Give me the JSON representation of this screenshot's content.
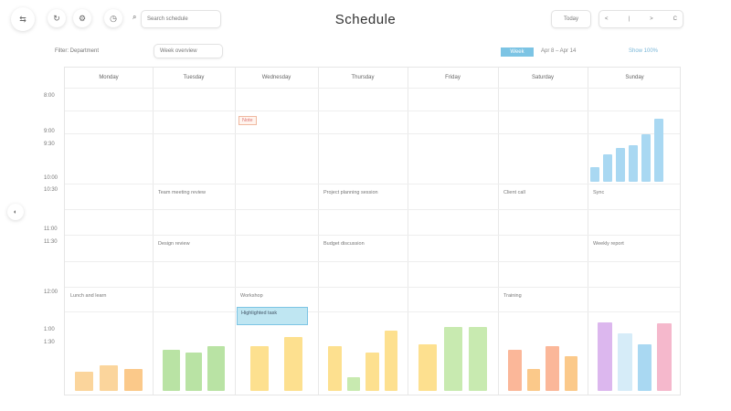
{
  "header": {
    "title": "Schedule",
    "search_placeholder": "Search schedule",
    "today_label": "Today",
    "nav": [
      "<",
      "|",
      ">",
      "C"
    ]
  },
  "toolbar": {
    "filter_label": "Filter: Department",
    "view_label": "Week overview",
    "active_chip": "Week",
    "range_label": "Apr 8 – Apr 14",
    "zoom_label": "Show 100%"
  },
  "days": [
    "Monday",
    "Tuesday",
    "Wednesday",
    "Thursday",
    "Friday",
    "Saturday",
    "Sunday"
  ],
  "times": [
    "8:00",
    "9:00",
    "9:30",
    "10:00",
    "10:30",
    "11:00",
    "11:30",
    "12:00",
    "1:00",
    "1:30"
  ],
  "events": [
    {
      "day": 1,
      "row": "10:00",
      "text": "Team meeting review"
    },
    {
      "day": 3,
      "row": "10:00",
      "text": "Project planning session"
    },
    {
      "day": 5,
      "row": "10:00",
      "text": "Client call"
    },
    {
      "day": 6,
      "row": "10:00",
      "text": "Sync"
    },
    {
      "day": 1,
      "row": "11:00",
      "text": "Design review"
    },
    {
      "day": 3,
      "row": "11:00",
      "text": "Budget discussion"
    },
    {
      "day": 6,
      "row": "11:00",
      "text": "Weekly report"
    },
    {
      "day": 0,
      "row": "12:00",
      "text": "Lunch and learn"
    },
    {
      "day": 2,
      "row": "12:00",
      "text": "Workshop"
    },
    {
      "day": 5,
      "row": "12:00",
      "text": "Training"
    }
  ],
  "tag_label": "Note",
  "highlight_label": "Highlighted task",
  "accent": "#7cc4e4",
  "bar_levels": [
    [
      {
        "v": 30,
        "c": "#fbd59c"
      },
      {
        "v": 40,
        "c": "#fbd59c"
      },
      {
        "v": 35,
        "c": "#fbc98a"
      }
    ],
    [
      {
        "v": 65,
        "c": "#b9e3a4"
      },
      {
        "v": 60,
        "c": "#b9e3a4"
      },
      {
        "v": 70,
        "c": "#b9e3a4"
      }
    ],
    [
      {
        "v": 70,
        "c": "#fde08f"
      },
      {
        "v": 85,
        "c": "#fde08f"
      }
    ],
    [
      {
        "v": 70,
        "c": "#fde08f"
      },
      {
        "v": 22,
        "c": "#c8eab0"
      },
      {
        "v": 60,
        "c": "#fde08f"
      },
      {
        "v": 95,
        "c": "#fde08f"
      }
    ],
    [
      {
        "v": 73,
        "c": "#fde08f"
      },
      {
        "v": 100,
        "c": "#c8eab0"
      },
      {
        "v": 100,
        "c": "#c8eab0"
      }
    ],
    [
      {
        "v": 65,
        "c": "#fbb799"
      },
      {
        "v": 35,
        "c": "#fbc98a"
      },
      {
        "v": 70,
        "c": "#fbb799"
      },
      {
        "v": 55,
        "c": "#fbc98a"
      }
    ],
    [
      {
        "v": 107,
        "c": "#dcb7ee"
      },
      {
        "v": 90,
        "c": "#d6ecf8"
      },
      {
        "v": 73,
        "c": "#a9d8f2"
      },
      {
        "v": 106,
        "c": "#f5b8cc"
      }
    ]
  ],
  "mini_chart": [
    22,
    40,
    49,
    54,
    70,
    92
  ]
}
